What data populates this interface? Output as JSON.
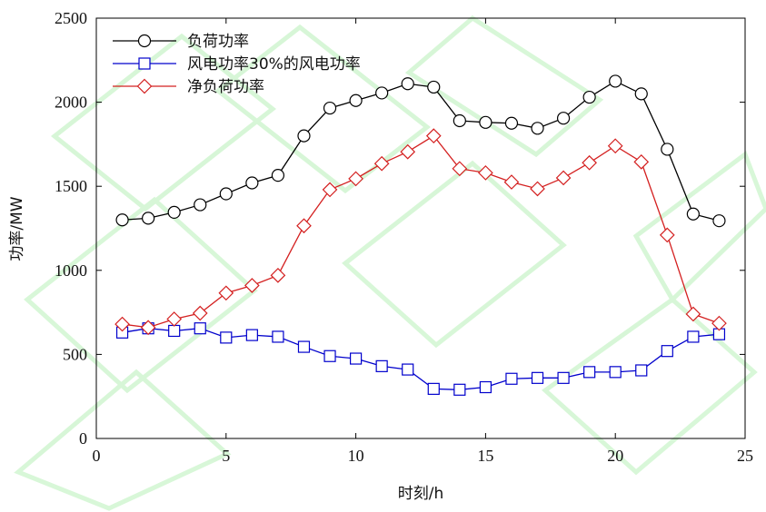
{
  "chart_data": {
    "type": "line",
    "title": "",
    "xlabel": "时刻/h",
    "ylabel": "功率/MW",
    "xlim": [
      0,
      25
    ],
    "ylim": [
      0,
      2500
    ],
    "xticks": [
      0,
      5,
      10,
      15,
      20,
      25
    ],
    "yticks": [
      0,
      500,
      1000,
      1500,
      2000,
      2500
    ],
    "grid": false,
    "legend_position": "top-left",
    "x": [
      1,
      2,
      3,
      4,
      5,
      6,
      7,
      8,
      9,
      10,
      11,
      12,
      13,
      14,
      15,
      16,
      17,
      18,
      19,
      20,
      21,
      22,
      23,
      24
    ],
    "series": [
      {
        "name": "负荷功率",
        "color": "#000000",
        "marker": "circle",
        "values": [
          1300,
          1310,
          1345,
          1390,
          1455,
          1520,
          1565,
          1800,
          1965,
          2010,
          2055,
          2110,
          2090,
          1890,
          1880,
          1875,
          1845,
          1905,
          2030,
          2125,
          2050,
          1720,
          1335,
          1295
        ]
      },
      {
        "name": "风电功率30%的风电功率",
        "color": "#0000cc",
        "marker": "square",
        "values": [
          630,
          655,
          640,
          655,
          600,
          615,
          605,
          545,
          490,
          475,
          430,
          410,
          295,
          290,
          305,
          355,
          360,
          360,
          395,
          395,
          405,
          520,
          605,
          620
        ]
      },
      {
        "name": "净负荷功率",
        "color": "#d42020",
        "marker": "diamond",
        "values": [
          680,
          660,
          710,
          745,
          865,
          910,
          970,
          1265,
          1480,
          1545,
          1635,
          1705,
          1800,
          1605,
          1580,
          1525,
          1485,
          1550,
          1640,
          1740,
          1645,
          1210,
          740,
          685
        ]
      }
    ]
  }
}
